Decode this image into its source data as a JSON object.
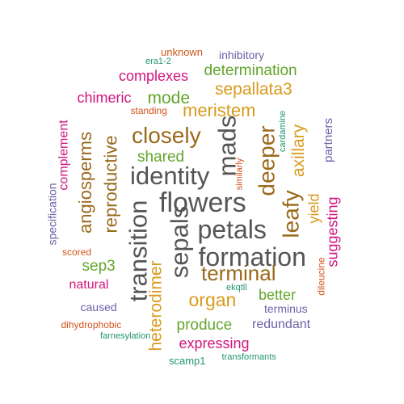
{
  "palette": {
    "gray": "#555555",
    "gold": "#d99a1d",
    "brown": "#9a6a1d",
    "green": "#63a52c",
    "magenta": "#d1157f",
    "orange": "#d2551c",
    "purple": "#6c63a8",
    "teal": "#21956f"
  },
  "words": [
    {
      "text": "flowers",
      "color": "gray"
    },
    {
      "text": "petals",
      "color": "gray"
    },
    {
      "text": "formation",
      "color": "gray"
    },
    {
      "text": "identity",
      "color": "gray"
    },
    {
      "text": "mads",
      "color": "gray"
    },
    {
      "text": "sepals",
      "color": "gray"
    },
    {
      "text": "transition",
      "color": "gray"
    },
    {
      "text": "closely",
      "color": "brown"
    },
    {
      "text": "deeper",
      "color": "brown"
    },
    {
      "text": "leafy",
      "color": "brown"
    },
    {
      "text": "terminal",
      "color": "brown"
    },
    {
      "text": "reproductive",
      "color": "brown"
    },
    {
      "text": "angiosperms",
      "color": "brown"
    },
    {
      "text": "meristem",
      "color": "gold"
    },
    {
      "text": "sepallata3",
      "color": "gold"
    },
    {
      "text": "axillary",
      "color": "gold"
    },
    {
      "text": "organ",
      "color": "gold"
    },
    {
      "text": "heterodimer",
      "color": "gold"
    },
    {
      "text": "yield",
      "color": "gold"
    },
    {
      "text": "determination",
      "color": "green"
    },
    {
      "text": "mode",
      "color": "green"
    },
    {
      "text": "shared",
      "color": "green"
    },
    {
      "text": "sep3",
      "color": "green"
    },
    {
      "text": "better",
      "color": "green"
    },
    {
      "text": "produce",
      "color": "green"
    },
    {
      "text": "complexes",
      "color": "magenta"
    },
    {
      "text": "chimeric",
      "color": "magenta"
    },
    {
      "text": "complement",
      "color": "magenta"
    },
    {
      "text": "natural",
      "color": "magenta"
    },
    {
      "text": "expressing",
      "color": "magenta"
    },
    {
      "text": "suggesting",
      "color": "magenta"
    },
    {
      "text": "unknown",
      "color": "orange"
    },
    {
      "text": "standing",
      "color": "orange"
    },
    {
      "text": "similarly",
      "color": "orange"
    },
    {
      "text": "scored",
      "color": "orange"
    },
    {
      "text": "dihydrophobic",
      "color": "orange"
    },
    {
      "text": "dileucine",
      "color": "orange"
    },
    {
      "text": "inhibitory",
      "color": "purple"
    },
    {
      "text": "partners",
      "color": "purple"
    },
    {
      "text": "specification",
      "color": "purple"
    },
    {
      "text": "caused",
      "color": "purple"
    },
    {
      "text": "terminus",
      "color": "purple"
    },
    {
      "text": "redundant",
      "color": "purple"
    },
    {
      "text": "era1-2",
      "color": "teal"
    },
    {
      "text": "cardamine",
      "color": "teal"
    },
    {
      "text": "ekqtll",
      "color": "teal"
    },
    {
      "text": "farnesylation",
      "color": "teal"
    },
    {
      "text": "scamp1",
      "color": "teal"
    },
    {
      "text": "transformants",
      "color": "teal"
    }
  ]
}
